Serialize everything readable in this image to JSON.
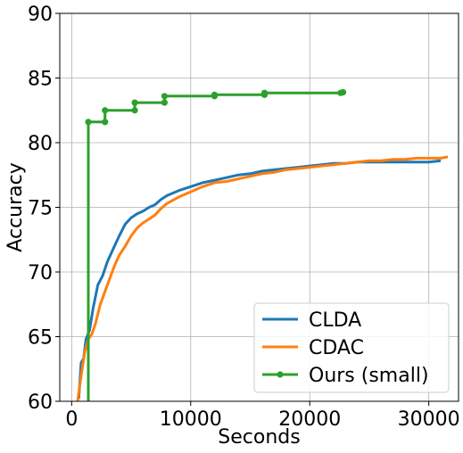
{
  "chart_data": {
    "type": "line",
    "title": "",
    "xlabel": "Seconds",
    "ylabel": "Accuracy",
    "xlim": [
      -1000,
      32500
    ],
    "ylim": [
      60,
      90
    ],
    "xticks": [
      0,
      10000,
      20000,
      30000
    ],
    "xtick_labels": [
      "0",
      "10000",
      "20000",
      "30000"
    ],
    "yticks": [
      60,
      65,
      70,
      75,
      80,
      85,
      90
    ],
    "ytick_labels": [
      "60",
      "65",
      "70",
      "75",
      "80",
      "85",
      "90"
    ],
    "grid": true,
    "legend_position": "lower-right",
    "series": [
      {
        "name": "CLDA",
        "color": "#1f77b4",
        "marker": "none",
        "x": [
          600,
          800,
          1000,
          1200,
          1500,
          1800,
          2200,
          2600,
          3000,
          3500,
          4000,
          4500,
          5000,
          5500,
          6000,
          6500,
          7000,
          7500,
          8000,
          9000,
          10000,
          11000,
          12000,
          13000,
          14000,
          15000,
          16000,
          17000,
          18000,
          19000,
          20000,
          21000,
          22000,
          23000,
          24000,
          25000,
          26000,
          27000,
          28000,
          29000,
          30000,
          31000
        ],
        "y": [
          60.2,
          63.0,
          63.3,
          64.8,
          65.5,
          67.2,
          69.0,
          69.7,
          70.8,
          71.8,
          72.8,
          73.7,
          74.2,
          74.5,
          74.7,
          75.0,
          75.2,
          75.6,
          75.9,
          76.3,
          76.6,
          76.9,
          77.1,
          77.3,
          77.5,
          77.6,
          77.8,
          77.9,
          78.0,
          78.1,
          78.2,
          78.3,
          78.4,
          78.4,
          78.5,
          78.5,
          78.5,
          78.5,
          78.5,
          78.5,
          78.5,
          78.6
        ]
      },
      {
        "name": "CDAC",
        "color": "#ff7f0e",
        "marker": "none",
        "x": [
          500,
          800,
          1100,
          1400,
          1700,
          2000,
          2400,
          2800,
          3200,
          3600,
          4000,
          4500,
          5000,
          5500,
          6000,
          6500,
          7000,
          7500,
          8000,
          9000,
          10000,
          11000,
          12000,
          13000,
          14000,
          15000,
          16000,
          17000,
          18000,
          19000,
          20000,
          21000,
          22000,
          23000,
          24000,
          25000,
          26000,
          27000,
          28000,
          29000,
          30000,
          31000,
          31600
        ],
        "y": [
          60.0,
          62.0,
          63.8,
          64.8,
          65.2,
          66.0,
          67.5,
          68.5,
          69.5,
          70.5,
          71.3,
          72.0,
          72.8,
          73.4,
          73.8,
          74.1,
          74.4,
          74.9,
          75.3,
          75.8,
          76.2,
          76.6,
          76.9,
          77.0,
          77.2,
          77.4,
          77.6,
          77.7,
          77.9,
          78.0,
          78.1,
          78.2,
          78.3,
          78.4,
          78.5,
          78.6,
          78.6,
          78.7,
          78.7,
          78.8,
          78.8,
          78.8,
          78.9
        ]
      },
      {
        "name": "Ours (small)",
        "color": "#2ca02c",
        "marker": "circle",
        "step": true,
        "x": [
          1400,
          1400,
          2800,
          2800,
          5300,
          5300,
          7800,
          7800,
          12000,
          12000,
          16200,
          16200,
          22600,
          22800
        ],
        "y": [
          60.0,
          81.6,
          81.6,
          82.5,
          82.5,
          83.1,
          83.1,
          83.6,
          83.6,
          83.7,
          83.7,
          83.85,
          83.85,
          83.9
        ],
        "marker_x": [
          1400,
          2800,
          2800,
          5300,
          5300,
          7800,
          7800,
          12000,
          12000,
          16200,
          16200,
          22600,
          22800
        ],
        "marker_y": [
          81.6,
          81.6,
          82.5,
          82.5,
          83.1,
          83.1,
          83.6,
          83.6,
          83.7,
          83.7,
          83.85,
          83.85,
          83.9
        ]
      }
    ]
  }
}
